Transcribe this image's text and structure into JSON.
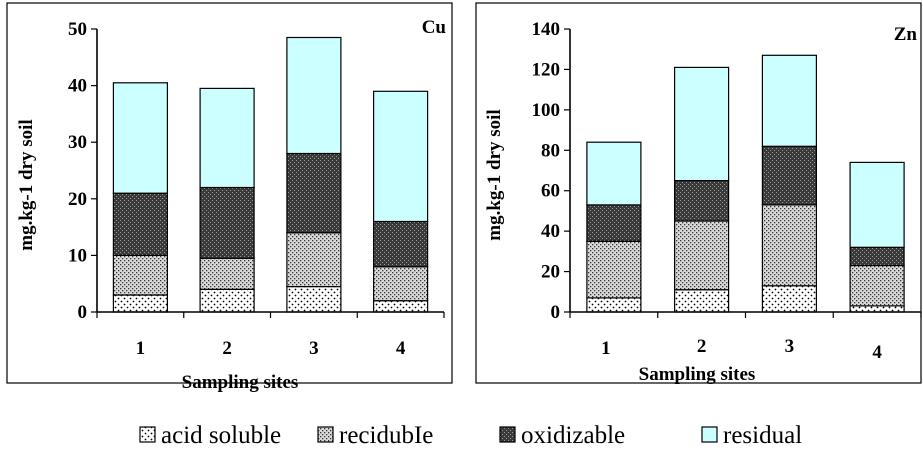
{
  "legend": [
    {
      "name": "acid soluble",
      "pattern": "dots"
    },
    {
      "name": "recidubIe",
      "pattern": "cross"
    },
    {
      "name": "oxidizable",
      "pattern": "dense"
    },
    {
      "name": "residual",
      "pattern": "cyan"
    }
  ],
  "colors": {
    "residual": "#ccffff",
    "frame": "#000000",
    "background": "#ffffff"
  },
  "chart_data": [
    {
      "type": "bar",
      "stacked": true,
      "title": "Cu",
      "xlabel": "Sampling sites",
      "ylabel": "mg.kg-1 dry soil",
      "ylim": [
        0,
        50
      ],
      "yticks": [
        0,
        10,
        20,
        30,
        40,
        50
      ],
      "categories": [
        "1",
        "2",
        "3",
        "4"
      ],
      "series": [
        {
          "name": "acid soluble",
          "values": [
            3,
            4,
            4.5,
            2
          ]
        },
        {
          "name": "recidubIe",
          "values": [
            7,
            5.5,
            9.5,
            6
          ]
        },
        {
          "name": "oxidizable",
          "values": [
            11,
            12.5,
            14,
            8
          ]
        },
        {
          "name": "residual",
          "values": [
            19.5,
            17.5,
            20.5,
            23
          ]
        }
      ],
      "grid": false
    },
    {
      "type": "bar",
      "stacked": true,
      "title": "Zn",
      "xlabel": "Sampling sites",
      "ylabel": "mg.kg-1  dry soil",
      "ylim": [
        0,
        140
      ],
      "yticks": [
        0,
        20,
        40,
        60,
        80,
        100,
        120,
        140
      ],
      "categories": [
        "1",
        "2",
        "3",
        "4"
      ],
      "series": [
        {
          "name": "acid soluble",
          "values": [
            7,
            11,
            13,
            3
          ]
        },
        {
          "name": "recidubIe",
          "values": [
            28,
            34,
            40,
            20
          ]
        },
        {
          "name": "oxidizable",
          "values": [
            18,
            20,
            29,
            9
          ]
        },
        {
          "name": "residual",
          "values": [
            31,
            56,
            45,
            42
          ]
        }
      ],
      "grid": false
    }
  ]
}
